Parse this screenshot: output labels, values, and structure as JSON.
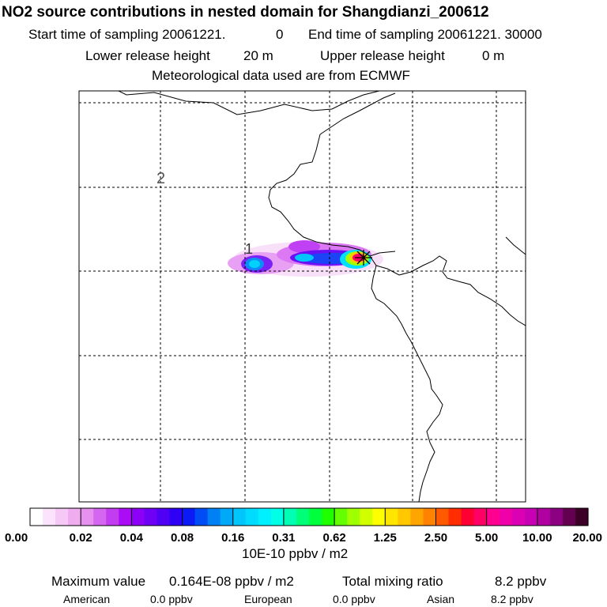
{
  "header": {
    "title": "NO2 source contributions in nested domain for Shangdianzi_200612",
    "start_label": "Start time of sampling 20061221.",
    "start_value": "0",
    "end_label": "End time of sampling 20061221. 30000",
    "lower_label": "Lower release height",
    "lower_value": "20 m",
    "upper_label": "Upper release height",
    "upper_value": "0 m",
    "met_line": "Meteorological data used are from ECMWF"
  },
  "map": {
    "grid_label_1": "1",
    "grid_label_2": "2",
    "station_marker": "Shangdianzi"
  },
  "colorbar": {
    "tick_labels": [
      "0.00",
      "0.02",
      "0.04",
      "0.08",
      "0.16",
      "0.31",
      "0.62",
      "1.25",
      "2.50",
      "5.00",
      "10.00",
      "20.00"
    ],
    "colors": [
      "#ffffff",
      "#fbe4fb",
      "#f5c8f5",
      "#efacef",
      "#e690ef",
      "#d466ef",
      "#c23cf0",
      "#aa0df5",
      "#8c00f5",
      "#6e00f5",
      "#4f00f5",
      "#2e00f5",
      "#0c1af5",
      "#004cf5",
      "#0080f5",
      "#00a8f8",
      "#00c6fb",
      "#00dcfd",
      "#00f0fe",
      "#00ffe6",
      "#00ffb4",
      "#00ff78",
      "#00ff3c",
      "#1eff00",
      "#64ff00",
      "#a0ff00",
      "#d2ff00",
      "#ffff00",
      "#ffe600",
      "#ffc800",
      "#ffa500",
      "#ff8200",
      "#ff5a00",
      "#ff2d00",
      "#ff0032",
      "#ff0064",
      "#ff0090",
      "#f000a8",
      "#dc00b4",
      "#c800b4",
      "#b000a0",
      "#8c0082",
      "#640050",
      "#3c0028"
    ],
    "unit": "10E-10 ppbv / m2"
  },
  "footer": {
    "max_label": "Maximum value",
    "max_value": "0.164E-08 ppbv / m2",
    "total_label": "Total mixing ratio",
    "total_value": "8.2 ppbv",
    "american_label": "American",
    "american_value": "0.0 ppbv",
    "european_label": "European",
    "european_value": "0.0 ppbv",
    "asian_label": "Asian",
    "asian_value": "8.2 ppbv"
  }
}
